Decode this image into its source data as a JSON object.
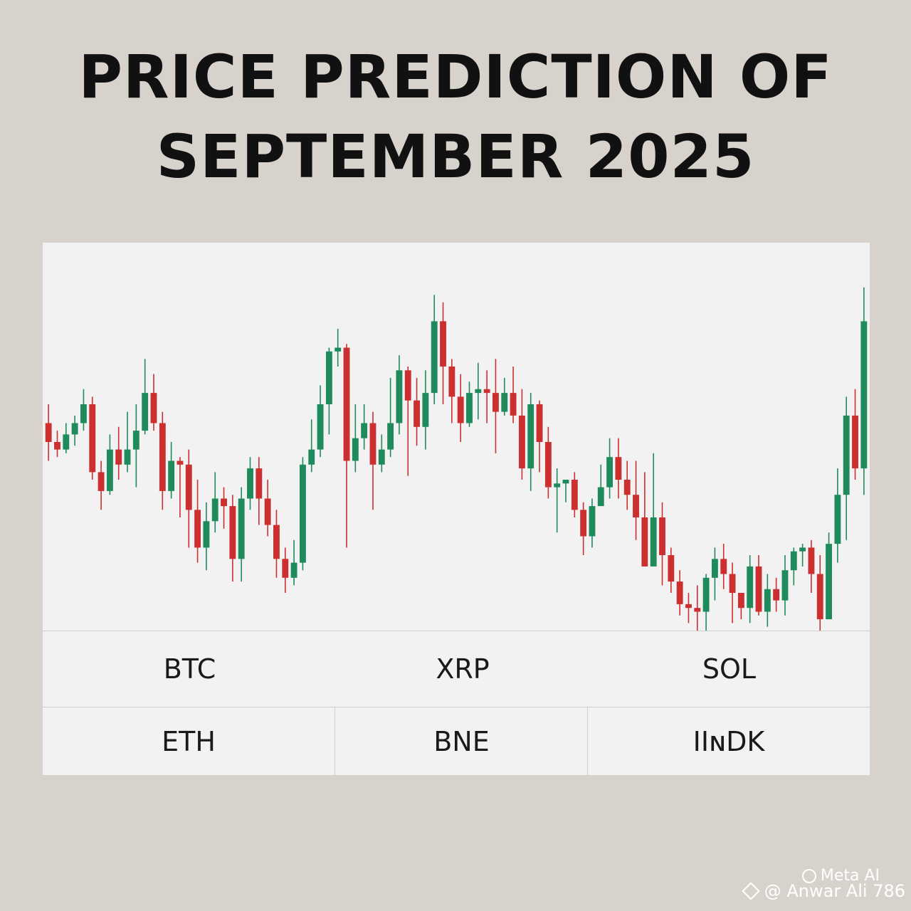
{
  "title": {
    "line1": "PRICE PREDICTION OF",
    "line2": "SEPTEMBER 2025"
  },
  "tickers": {
    "row1": [
      "BTC",
      "XRP",
      "SOL"
    ],
    "row2": [
      "ETH",
      "BNE",
      "IIɴDK"
    ]
  },
  "watermark": {
    "brand": "Meta AI",
    "handle": "@ Anwar Ali 786"
  },
  "colors": {
    "up": "#1f8a5b",
    "down": "#cc2f2f",
    "background": "#d8d2cc",
    "panel": "#f2f2f2"
  },
  "icons": {
    "brand": "meta-ai-ring-icon",
    "handle": "diamond-logo-icon"
  },
  "chart_data": {
    "type": "candlestick",
    "title": "PRICE PREDICTION OF SEPTEMBER 2025",
    "xlabel": "",
    "ylabel": "",
    "ylim": [
      0,
      100
    ],
    "grid": false,
    "candles": [
      [
        55,
        50,
        60,
        45
      ],
      [
        50,
        48,
        53,
        46
      ],
      [
        48,
        52,
        55,
        47
      ],
      [
        52,
        55,
        57,
        49
      ],
      [
        55,
        60,
        64,
        53
      ],
      [
        60,
        42,
        62,
        40
      ],
      [
        42,
        37,
        45,
        32
      ],
      [
        37,
        48,
        52,
        36
      ],
      [
        48,
        44,
        54,
        40
      ],
      [
        44,
        48,
        58,
        42
      ],
      [
        48,
        53,
        60,
        38
      ],
      [
        53,
        63,
        72,
        52
      ],
      [
        63,
        55,
        68,
        53
      ],
      [
        55,
        37,
        58,
        32
      ],
      [
        37,
        45,
        50,
        35
      ],
      [
        45,
        44,
        46,
        30
      ],
      [
        44,
        32,
        48,
        22
      ],
      [
        32,
        22,
        40,
        18
      ],
      [
        22,
        29,
        34,
        16
      ],
      [
        29,
        35,
        42,
        26
      ],
      [
        35,
        33,
        38,
        27
      ],
      [
        33,
        19,
        36,
        13
      ],
      [
        19,
        35,
        38,
        13
      ],
      [
        35,
        43,
        46,
        32
      ],
      [
        43,
        35,
        46,
        28
      ],
      [
        35,
        28,
        40,
        25
      ],
      [
        28,
        19,
        32,
        14
      ],
      [
        19,
        14,
        22,
        10
      ],
      [
        14,
        18,
        24,
        12
      ],
      [
        18,
        44,
        46,
        16
      ],
      [
        44,
        48,
        56,
        42
      ],
      [
        48,
        60,
        65,
        46
      ],
      [
        60,
        74,
        75,
        52
      ],
      [
        74,
        75,
        80,
        70
      ],
      [
        75,
        45,
        76,
        22
      ],
      [
        45,
        51,
        60,
        42
      ],
      [
        51,
        55,
        60,
        48
      ],
      [
        55,
        44,
        58,
        32
      ],
      [
        44,
        48,
        52,
        42
      ],
      [
        48,
        55,
        67,
        46
      ],
      [
        55,
        69,
        73,
        52
      ],
      [
        69,
        61,
        70,
        41
      ],
      [
        61,
        54,
        67,
        49
      ],
      [
        54,
        63,
        69,
        48
      ],
      [
        63,
        82,
        89,
        60
      ],
      [
        82,
        70,
        87,
        60
      ],
      [
        70,
        62,
        72,
        55
      ],
      [
        62,
        55,
        68,
        50
      ],
      [
        55,
        63,
        66,
        54
      ],
      [
        63,
        64,
        71,
        56
      ],
      [
        64,
        63,
        69,
        55
      ],
      [
        63,
        58,
        72,
        47
      ],
      [
        58,
        63,
        67,
        57
      ],
      [
        63,
        57,
        70,
        55
      ],
      [
        57,
        43,
        64,
        40
      ],
      [
        43,
        60,
        63,
        37
      ],
      [
        60,
        50,
        61,
        42
      ],
      [
        50,
        38,
        54,
        35
      ],
      [
        38,
        39,
        43,
        26
      ],
      [
        39,
        40,
        40,
        34
      ],
      [
        40,
        32,
        42,
        30
      ],
      [
        32,
        25,
        34,
        20
      ],
      [
        25,
        33,
        35,
        22
      ],
      [
        33,
        38,
        44,
        35
      ],
      [
        38,
        46,
        51,
        35
      ],
      [
        46,
        40,
        51,
        35
      ],
      [
        40,
        36,
        45,
        32
      ],
      [
        36,
        30,
        45,
        24
      ],
      [
        30,
        17,
        42,
        17
      ],
      [
        17,
        30,
        47,
        18
      ],
      [
        30,
        20,
        34,
        12
      ],
      [
        20,
        13,
        22,
        10
      ],
      [
        13,
        7,
        16,
        4
      ],
      [
        7,
        6,
        10,
        2
      ],
      [
        6,
        5,
        12,
        0
      ],
      [
        5,
        14,
        15,
        0
      ],
      [
        14,
        19,
        22,
        8
      ],
      [
        19,
        15,
        23,
        11
      ],
      [
        15,
        10,
        18,
        2
      ],
      [
        10,
        6,
        10,
        3
      ],
      [
        6,
        17,
        20,
        2
      ],
      [
        17,
        5,
        20,
        4
      ],
      [
        5,
        11,
        15,
        1
      ],
      [
        11,
        8,
        14,
        5
      ],
      [
        8,
        16,
        20,
        4
      ],
      [
        16,
        21,
        22,
        12
      ],
      [
        21,
        22,
        23,
        17
      ],
      [
        22,
        15,
        24,
        10
      ],
      [
        15,
        3,
        20,
        0
      ],
      [
        3,
        23,
        26,
        3
      ],
      [
        23,
        36,
        43,
        18
      ],
      [
        36,
        57,
        62,
        24
      ],
      [
        57,
        43,
        64,
        40
      ],
      [
        43,
        82,
        91,
        36
      ]
    ]
  }
}
